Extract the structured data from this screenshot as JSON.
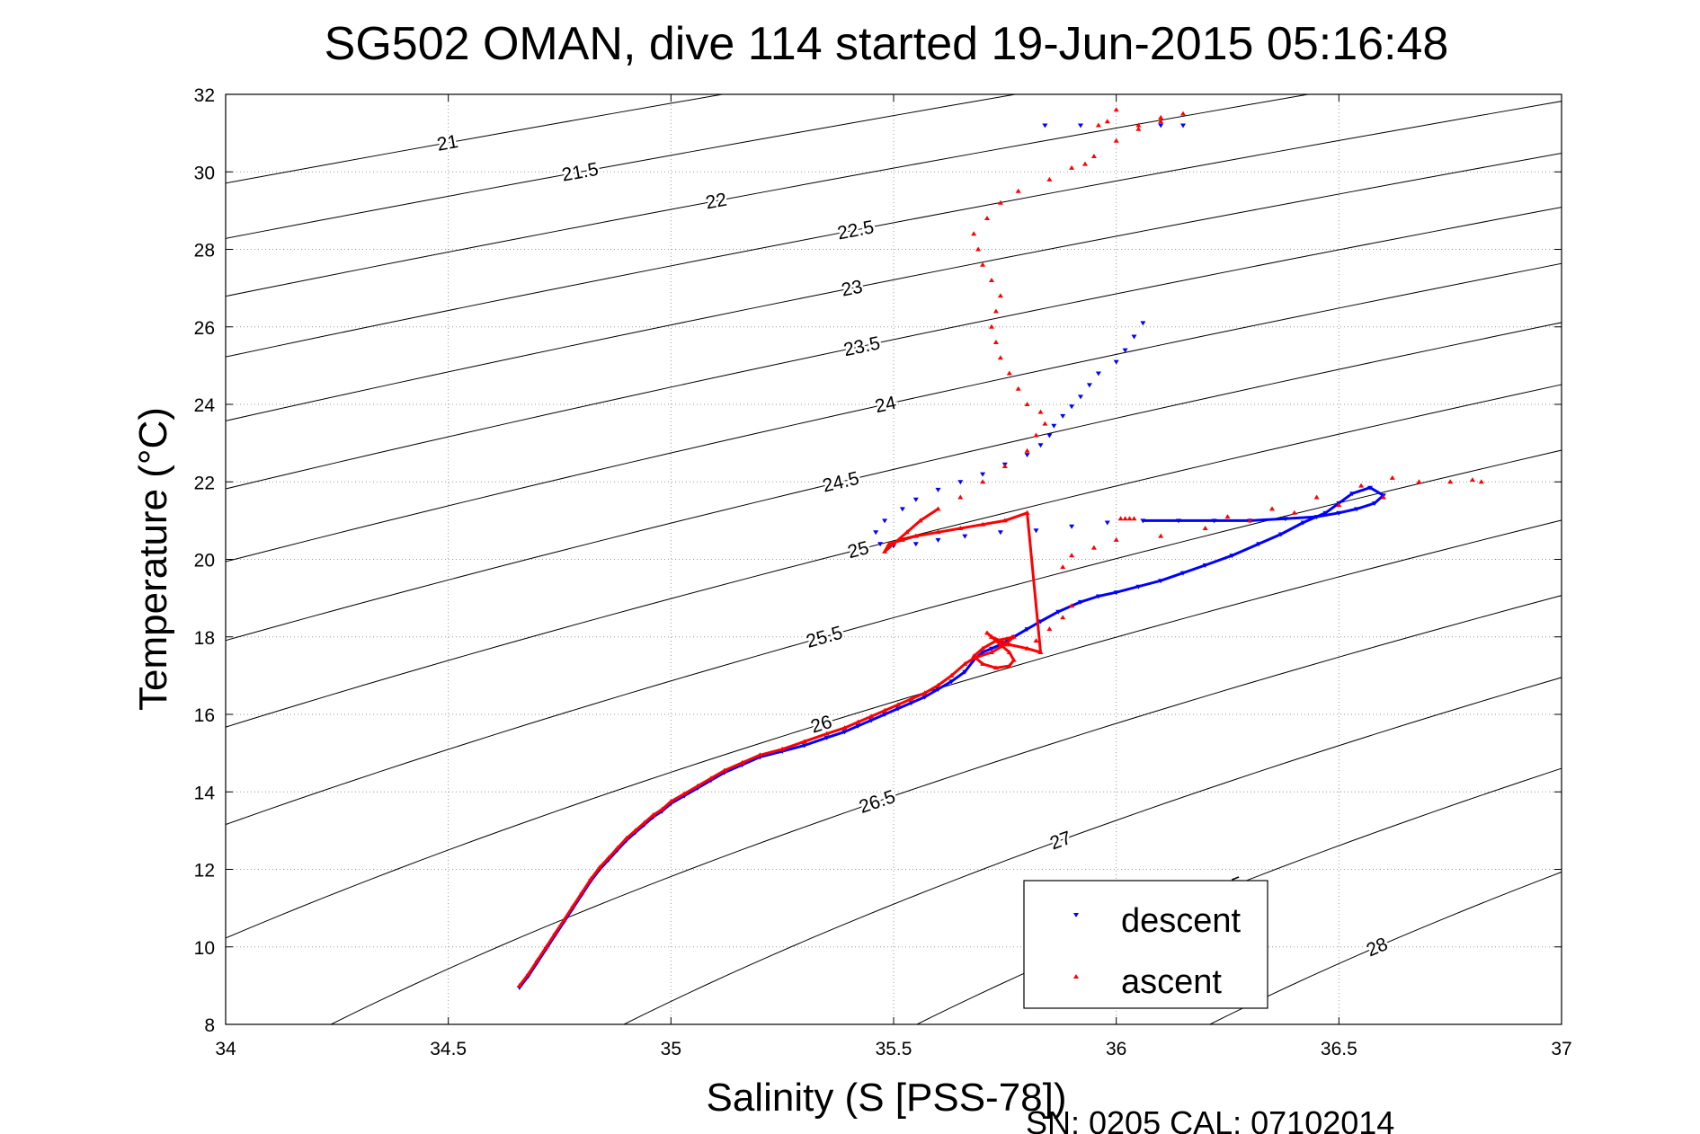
{
  "chart_data": {
    "type": "scatter",
    "title": "SG502 OMAN, dive 114 started 19-Jun-2015 05:16:48",
    "xlabel": "Salinity (S [PSS-78])",
    "ylabel": "Temperature (°C)",
    "footer": "SN: 0205  CAL: 07102014",
    "xlim": [
      34,
      37
    ],
    "ylim": [
      8,
      32
    ],
    "xticks": [
      34,
      34.5,
      35,
      35.5,
      36,
      36.5,
      37
    ],
    "xtick_labels": [
      "34",
      "34.5",
      "35",
      "35.5",
      "36",
      "36.5",
      "37"
    ],
    "yticks": [
      8,
      10,
      12,
      14,
      16,
      18,
      20,
      22,
      24,
      26,
      28,
      30,
      32
    ],
    "ytick_labels": [
      "8",
      "10",
      "12",
      "14",
      "16",
      "18",
      "20",
      "22",
      "24",
      "26",
      "28",
      "30",
      "32"
    ],
    "grid": true,
    "legend_position": "bottom-right",
    "density_contours": {
      "levels": [
        21,
        21.5,
        22,
        22.5,
        23,
        23.5,
        24,
        24.5,
        25,
        25.5,
        26,
        26.5,
        27,
        27.5,
        28
      ],
      "labels": [
        "21",
        "21.5",
        "22",
        "22.5",
        "23",
        "23.5",
        "24",
        "24.5",
        "25",
        "25.5",
        "26",
        "26.5",
        "27",
        "27.5",
        "28"
      ],
      "color": "#000000"
    },
    "series": [
      {
        "name": "descent",
        "color": "#0000ff",
        "marker": "triangle-down",
        "x": [
          34.66,
          34.68,
          34.7,
          34.72,
          34.74,
          34.76,
          34.78,
          34.8,
          34.82,
          34.84,
          34.86,
          34.88,
          34.9,
          34.92,
          34.94,
          34.96,
          34.98,
          35.0,
          35.03,
          35.06,
          35.09,
          35.12,
          35.16,
          35.2,
          35.25,
          35.3,
          35.35,
          35.39,
          35.42,
          35.45,
          35.48,
          35.51,
          35.54,
          35.57,
          35.6,
          35.63,
          35.66,
          35.68,
          35.7,
          35.72,
          35.74,
          35.77,
          35.8,
          35.83,
          35.87,
          35.92,
          35.96,
          36.0,
          36.05,
          36.1,
          36.15,
          36.2,
          36.26,
          36.32,
          36.37,
          36.42,
          36.47,
          36.5,
          36.53,
          36.57,
          36.6,
          36.58,
          36.54,
          36.5,
          36.45,
          36.38,
          36.3,
          36.22,
          36.14,
          36.06,
          35.98,
          35.9,
          35.82,
          35.74,
          35.66,
          35.6,
          35.55,
          35.5,
          35.47,
          35.46,
          35.48,
          35.52,
          35.55,
          35.6,
          35.65,
          35.7,
          35.75,
          35.8,
          35.83,
          35.85,
          35.86,
          35.88,
          35.9,
          35.92,
          35.94,
          35.96,
          36.0,
          36.02,
          36.04,
          36.06,
          36.1,
          36.15,
          35.84,
          35.92
        ],
        "y": [
          8.95,
          9.25,
          9.6,
          9.95,
          10.3,
          10.65,
          11.0,
          11.35,
          11.7,
          12.0,
          12.25,
          12.5,
          12.75,
          12.95,
          13.15,
          13.35,
          13.5,
          13.7,
          13.9,
          14.1,
          14.3,
          14.5,
          14.7,
          14.9,
          15.05,
          15.2,
          15.4,
          15.55,
          15.7,
          15.85,
          16.0,
          16.15,
          16.3,
          16.45,
          16.65,
          16.85,
          17.1,
          17.4,
          17.6,
          17.7,
          17.8,
          18.0,
          18.2,
          18.4,
          18.65,
          18.9,
          19.05,
          19.15,
          19.3,
          19.45,
          19.65,
          19.85,
          20.1,
          20.4,
          20.65,
          20.95,
          21.2,
          21.45,
          21.7,
          21.85,
          21.65,
          21.45,
          21.3,
          21.2,
          21.1,
          21.05,
          21.0,
          21.0,
          21.0,
          21.0,
          20.95,
          20.85,
          20.75,
          20.7,
          20.6,
          20.5,
          20.4,
          20.35,
          20.4,
          20.7,
          21.0,
          21.3,
          21.55,
          21.8,
          22.0,
          22.2,
          22.45,
          22.7,
          22.95,
          23.2,
          23.45,
          23.7,
          23.95,
          24.2,
          24.5,
          24.8,
          25.1,
          25.4,
          25.75,
          26.1,
          31.2,
          31.2,
          31.2,
          31.2
        ],
        "line_points": 70
      },
      {
        "name": "ascent",
        "color": "#ff0000",
        "marker": "triangle-up",
        "x": [
          34.66,
          34.68,
          34.7,
          34.72,
          34.74,
          34.76,
          34.78,
          34.8,
          34.82,
          34.84,
          34.86,
          34.88,
          34.9,
          34.92,
          34.94,
          34.96,
          34.98,
          35.0,
          35.03,
          35.06,
          35.09,
          35.12,
          35.16,
          35.2,
          35.25,
          35.3,
          35.35,
          35.39,
          35.42,
          35.45,
          35.48,
          35.51,
          35.54,
          35.57,
          35.6,
          35.63,
          35.66,
          35.68,
          35.72,
          35.75,
          35.77,
          35.73,
          35.7,
          35.68,
          35.7,
          35.73,
          35.76,
          35.77,
          35.76,
          35.74,
          35.72,
          35.71,
          35.72,
          35.74,
          35.76,
          35.8,
          35.83,
          35.8,
          35.75,
          35.7,
          35.65,
          35.6,
          35.55,
          35.52,
          35.49,
          35.48,
          35.5,
          35.53,
          35.56,
          35.6,
          35.65,
          35.7,
          35.75,
          35.8,
          35.82,
          35.84,
          35.83,
          35.8,
          35.78,
          35.76,
          35.74,
          35.73,
          35.72,
          35.73,
          35.74,
          35.72,
          35.7,
          35.69,
          35.68,
          35.71,
          35.74,
          35.78,
          35.85,
          35.9,
          35.95,
          36.0,
          36.05,
          36.1,
          36.15,
          36.25,
          36.35,
          36.45,
          36.55,
          36.62,
          36.68,
          36.75,
          36.8,
          36.82,
          36.6,
          36.5,
          36.4,
          36.3,
          36.2,
          36.1,
          36.0,
          35.95,
          35.9,
          35.88,
          36.05,
          36.1,
          36.0,
          35.98,
          35.96,
          35.93,
          35.9,
          35.88,
          35.85,
          35.82,
          36.01,
          36.02,
          36.03,
          36.04
        ],
        "y": [
          9.0,
          9.3,
          9.65,
          10.0,
          10.35,
          10.7,
          11.05,
          11.4,
          11.75,
          12.05,
          12.3,
          12.55,
          12.8,
          13.0,
          13.2,
          13.4,
          13.55,
          13.75,
          13.95,
          14.15,
          14.35,
          14.55,
          14.75,
          14.95,
          15.1,
          15.3,
          15.5,
          15.65,
          15.8,
          15.95,
          16.1,
          16.25,
          16.4,
          16.55,
          16.75,
          17.0,
          17.3,
          17.45,
          17.6,
          17.8,
          18.0,
          17.9,
          17.7,
          17.5,
          17.3,
          17.2,
          17.25,
          17.4,
          17.6,
          17.8,
          18.0,
          18.1,
          18.0,
          17.9,
          17.8,
          17.7,
          17.6,
          21.2,
          21.0,
          20.9,
          20.8,
          20.7,
          20.6,
          20.5,
          20.4,
          20.2,
          20.4,
          20.7,
          21.0,
          21.3,
          21.6,
          22.0,
          22.4,
          22.8,
          23.2,
          23.5,
          23.8,
          24.0,
          24.4,
          24.8,
          25.2,
          25.6,
          26.0,
          26.4,
          26.8,
          27.2,
          27.6,
          28.0,
          28.4,
          28.8,
          29.2,
          29.5,
          29.8,
          30.1,
          30.4,
          30.8,
          31.1,
          31.3,
          31.5,
          21.1,
          21.3,
          21.6,
          21.9,
          22.1,
          22.0,
          22.0,
          22.05,
          22.0,
          21.6,
          21.4,
          21.2,
          21.0,
          20.8,
          20.6,
          20.5,
          20.3,
          20.1,
          19.8,
          31.2,
          31.4,
          31.6,
          31.3,
          31.2,
          30.2,
          18.8,
          18.5,
          18.2,
          17.9,
          21.05,
          21.05,
          21.05,
          21.05
        ],
        "line_points": 70
      }
    ]
  },
  "legend": {
    "descent_label": "descent",
    "ascent_label": "ascent"
  }
}
